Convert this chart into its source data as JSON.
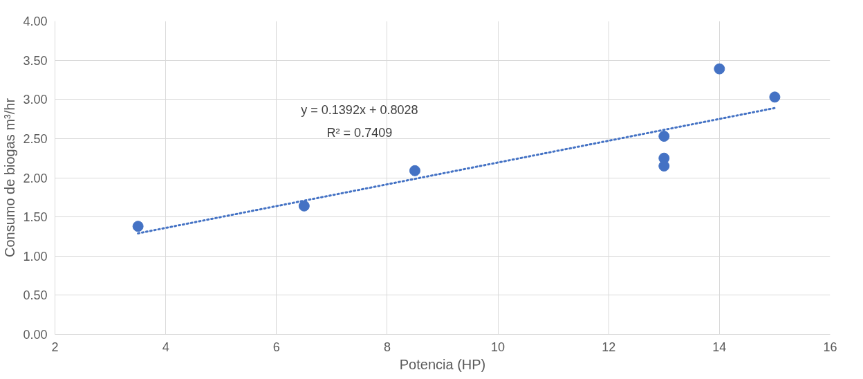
{
  "chart_data": {
    "type": "scatter",
    "xlabel": "Potencia (HP)",
    "ylabel": "Consumo de biogas m³/hr",
    "series": [
      {
        "color": "#4472c4",
        "marker": "circle",
        "x": [
          3.5,
          6.5,
          8.5,
          13,
          13,
          13,
          14,
          15
        ],
        "values": [
          1.38,
          1.64,
          2.09,
          2.53,
          2.25,
          2.15,
          3.39,
          3.03
        ]
      },
      {
        "type": "line",
        "color": "#4472c4",
        "line_style": "dotted",
        "x": [
          3.5,
          15
        ],
        "values": [
          1.29,
          2.89
        ]
      }
    ],
    "annotations": [
      "y = 0.1392x + 0.8028",
      "R² = 0.7409"
    ],
    "xlim": [
      2,
      16
    ],
    "xticks": [
      2,
      4,
      6,
      8,
      10,
      12,
      14,
      16
    ],
    "ylim": [
      0,
      4
    ],
    "yticks": [
      {
        "value": 0,
        "label": "0.00"
      },
      {
        "value": 0.5,
        "label": "0.50"
      },
      {
        "value": 1,
        "label": "1.00"
      },
      {
        "value": 1.5,
        "label": "1.50"
      },
      {
        "value": 2,
        "label": "2.00"
      },
      {
        "value": 2.5,
        "label": "2.50"
      },
      {
        "value": 3,
        "label": "3.00"
      },
      {
        "value": 3.5,
        "label": "3.50"
      },
      {
        "value": 4,
        "label": "4.00"
      }
    ],
    "grid": true
  }
}
